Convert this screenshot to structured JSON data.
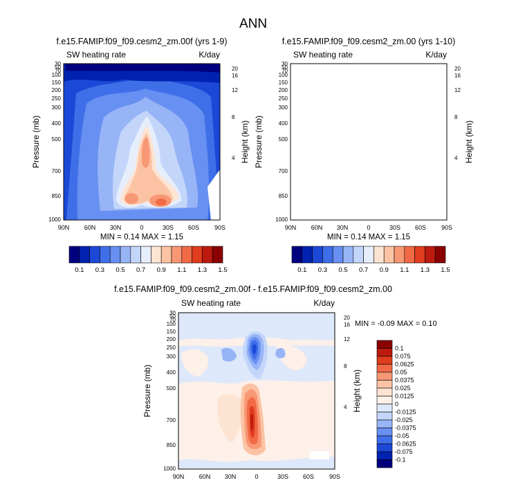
{
  "figure": {
    "title": "ANN"
  },
  "panels": [
    {
      "title": "f.e15.FAMIP.f09_f09.cesm2_zm.00f (yrs 1-9)",
      "left_label": "SW heating rate",
      "right_label": "K/day",
      "stats": "MIN =  0.14  MAX =  1.15"
    },
    {
      "title": "f.e15.FAMIP.f09_f09.cesm2_zm.00 (yrs 1-10)",
      "left_label": "SW heating rate",
      "right_label": "K/day",
      "stats": "MIN =  0.14  MAX =  1.15"
    },
    {
      "title": "f.e15.FAMIP.f09_f09.cesm2_zm.00f - f.e15.FAMIP.f09_f09.cesm2_zm.00",
      "left_label": "SW heating rate",
      "right_label": "K/day",
      "stats": "MIN = -0.09  MAX =  0.10"
    }
  ],
  "chart_data": [
    {
      "type": "heatmap",
      "title": "f.e15.FAMIP.f09_f09.cesm2_zm.00f (yrs 1-9)",
      "xlabel": "",
      "ylabel": "Pressure (mb)",
      "y2label": "Height (km)",
      "x_ticks": [
        "90N",
        "60N",
        "30N",
        "0",
        "30S",
        "60S",
        "90S"
      ],
      "y_ticks": [
        "30",
        "50",
        "70",
        "100",
        "150",
        "200",
        "250",
        "300",
        "400",
        "500",
        "700",
        "850",
        "1000"
      ],
      "y2_ticks": [
        "20",
        "16",
        "12",
        "8",
        "4"
      ],
      "ylim": [
        30,
        1000
      ],
      "min": 0.14,
      "max": 1.15,
      "units": "K/day",
      "colorbar": {
        "levels": [
          "0.1",
          "0.3",
          "0.5",
          "0.7",
          "0.9",
          "1.1",
          "1.3",
          "1.5"
        ],
        "colors": [
          "#00007f",
          "#0022b0",
          "#1c48d8",
          "#3f6fe8",
          "#6890f2",
          "#97b4f6",
          "#c3d6fa",
          "#e6eefc",
          "#fde3d2",
          "#fbc3a4",
          "#f89774",
          "#f26946",
          "#e03c1e",
          "#bc1a0e",
          "#8a0000"
        ]
      }
    },
    {
      "type": "heatmap",
      "title": "f.e15.FAMIP.f09_f09.cesm2_zm.00 (yrs 1-10)",
      "xlabel": "",
      "ylabel": "Pressure (mb)",
      "y2label": "Height (km)",
      "x_ticks": [
        "90N",
        "60N",
        "30N",
        "0",
        "30S",
        "60S",
        "90S"
      ],
      "y_ticks": [
        "30",
        "50",
        "70",
        "100",
        "150",
        "200",
        "250",
        "300",
        "400",
        "500",
        "700",
        "850",
        "1000"
      ],
      "y2_ticks": [
        "20",
        "16",
        "12",
        "8",
        "4"
      ],
      "ylim": [
        30,
        1000
      ],
      "min": 0.14,
      "max": 1.15,
      "units": "K/day",
      "colorbar": {
        "levels": [
          "0.1",
          "0.3",
          "0.5",
          "0.7",
          "0.9",
          "1.1",
          "1.3",
          "1.5"
        ],
        "colors": [
          "#00007f",
          "#0022b0",
          "#1c48d8",
          "#3f6fe8",
          "#6890f2",
          "#97b4f6",
          "#c3d6fa",
          "#e6eefc",
          "#fde3d2",
          "#fbc3a4",
          "#f89774",
          "#f26946",
          "#e03c1e",
          "#bc1a0e",
          "#8a0000"
        ]
      }
    },
    {
      "type": "heatmap",
      "title": "f.e15.FAMIP.f09_f09.cesm2_zm.00f - f.e15.FAMIP.f09_f09.cesm2_zm.00",
      "xlabel": "",
      "ylabel": "Pressure (mb)",
      "y2label": "Height (km)",
      "x_ticks": [
        "90N",
        "60N",
        "30N",
        "0",
        "30S",
        "60S",
        "90S"
      ],
      "y_ticks": [
        "30",
        "50",
        "70",
        "100",
        "150",
        "200",
        "250",
        "300",
        "400",
        "500",
        "700",
        "850",
        "1000"
      ],
      "y2_ticks": [
        "20",
        "16",
        "12",
        "8",
        "4"
      ],
      "ylim": [
        30,
        1000
      ],
      "min": -0.09,
      "max": 0.1,
      "units": "K/day",
      "colorbar": {
        "levels": [
          "0.1",
          "0.075",
          "0.0625",
          "0.05",
          "0.0375",
          "0.025",
          "0.0125",
          "0",
          "-0.0125",
          "-0.025",
          "-0.0375",
          "-0.05",
          "-0.0625",
          "-0.075",
          "-0.1"
        ],
        "colors": [
          "#8a0000",
          "#bc1a0e",
          "#e03c1e",
          "#f26946",
          "#f89774",
          "#fbc3a4",
          "#fde3d2",
          "#fdf0e8",
          "#dde8fa",
          "#c3d6fa",
          "#97b4f6",
          "#6890f2",
          "#3f6fe8",
          "#1c48d8",
          "#0022b0",
          "#00007f"
        ]
      }
    }
  ]
}
